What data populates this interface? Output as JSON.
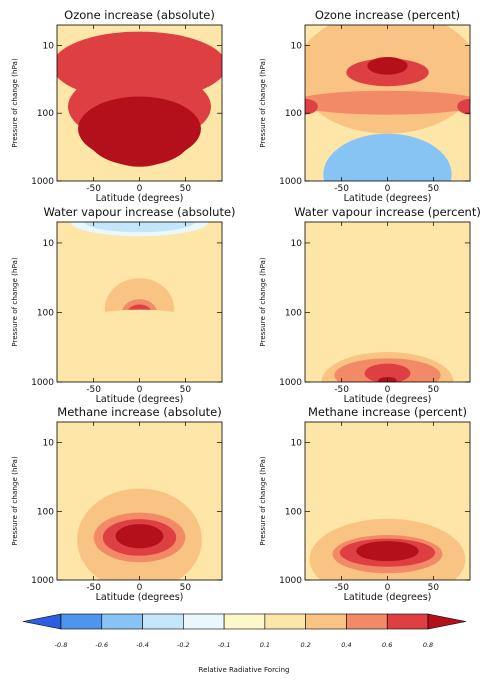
{
  "chart_data": {
    "type": "contour",
    "colorbar": {
      "label": "Relative Radiative Forcing",
      "ticks": [
        "-0.8",
        "-0.6",
        "-0.4",
        "-0.2",
        "-0.1",
        "0.1",
        "0.2",
        "0.4",
        "0.6",
        "0.8"
      ],
      "levels": [
        -1.0,
        -0.8,
        -0.6,
        -0.4,
        -0.2,
        -0.1,
        0.1,
        0.2,
        0.4,
        0.6,
        0.8,
        1.0
      ],
      "colors": [
        "#2b5fe0",
        "#4f95ee",
        "#87c4f4",
        "#c4e6fa",
        "#eaf7fc",
        "#fdf8c9",
        "#fde6a8",
        "#f9c383",
        "#f28a68",
        "#de3f42",
        "#b3101c"
      ]
    },
    "panels": [
      {
        "id": "ozone-abs",
        "title": "Ozone increase (absolute)",
        "xlabel": "Latitude (degrees)",
        "ylabel": "Pressure of change (hPa)",
        "xlim": [
          -90,
          90
        ],
        "ylim": [
          1000,
          5
        ],
        "ylog": true,
        "xticks": [
          -50,
          0,
          50
        ],
        "yticks": [
          10,
          100,
          1000
        ],
        "blobs": [
          {
            "cx": 0,
            "cy": 20,
            "rx": 95,
            "ry": 3.2,
            "v": 0.65
          },
          {
            "cx": 0,
            "cy": 80,
            "rx": 78,
            "ry": 3.4,
            "v": 0.75
          },
          {
            "cx": 0,
            "cy": 170,
            "rx": 67,
            "ry": 3.0,
            "v": 0.85
          },
          {
            "cx": 0,
            "cy": 230,
            "rx": 56,
            "ry": 2.6,
            "v": 0.95
          },
          {
            "cx": 0,
            "cy": 280,
            "rx": 42,
            "ry": 2.2,
            "v": 1.05
          },
          {
            "cx": 0,
            "cy": 330,
            "rx": 33,
            "ry": 1.8,
            "v": 1.15
          }
        ]
      },
      {
        "id": "ozone-pct",
        "title": "Ozone increase (percent)",
        "xlabel": "Latitude (degrees)",
        "ylabel": "Pressure of change (hPa)",
        "xlim": [
          -90,
          90
        ],
        "ylim": [
          1000,
          5
        ],
        "ylog": true,
        "xticks": [
          -50,
          0,
          50
        ],
        "yticks": [
          10,
          100,
          1000
        ],
        "blobs": [
          {
            "cx": 0,
            "cy": 25,
            "rx": 100,
            "ry": 8.0,
            "v": 0.25
          },
          {
            "cx": 0,
            "cy": 40,
            "rx": 105,
            "ry": 2.2,
            "v": 0.35
          },
          {
            "cx": 0,
            "cy": 70,
            "rx": 105,
            "ry": 1.5,
            "v": 0.45
          },
          {
            "cx": 0,
            "cy": 70,
            "rx": 110,
            "ry": 1.22,
            "v": 0.55
          },
          {
            "cx": 0,
            "cy": 25,
            "rx": 45,
            "ry": 1.6,
            "v": 0.75
          },
          {
            "cx": 0,
            "cy": 20,
            "rx": 22,
            "ry": 1.35,
            "v": 0.85
          },
          {
            "cx": -90,
            "cy": 80,
            "rx": 14,
            "ry": 1.3,
            "v": 0.7
          },
          {
            "cx": 90,
            "cy": 80,
            "rx": 14,
            "ry": 1.3,
            "v": 0.7
          },
          {
            "cx": 0,
            "cy": 800,
            "rx": 70,
            "ry": 4.0,
            "v": -0.42
          }
        ]
      },
      {
        "id": "water-abs",
        "title": "Water vapour increase (absolute)",
        "xlabel": "Latitude (degrees)",
        "ylabel": "Pressure of change (hPa)",
        "xlim": [
          -90,
          90
        ],
        "ylim": [
          1000,
          5
        ],
        "ylog": true,
        "xticks": [
          -50,
          0,
          50
        ],
        "yticks": [
          10,
          100,
          1000
        ],
        "blobs": [
          {
            "cx": 0,
            "cy": 5,
            "rx": 75,
            "ry": 1.6,
            "v": -0.15
          },
          {
            "cx": 0,
            "cy": 5,
            "rx": 60,
            "ry": 1.4,
            "v": -0.25
          },
          {
            "cx": 0,
            "cy": 4.5,
            "rx": 45,
            "ry": 1.3,
            "v": -0.35
          },
          {
            "cx": 0,
            "cy": 4,
            "rx": 35,
            "ry": 1.25,
            "v": -0.45
          },
          {
            "cx": 0,
            "cy": 4,
            "rx": 22,
            "ry": 1.2,
            "v": -0.55
          },
          {
            "cx": 0,
            "cy": 90,
            "rx": 38,
            "ry": 2.8,
            "v": 0.22
          },
          {
            "cx": 0,
            "cy": 95,
            "rx": 25,
            "ry": 1.85,
            "v": 0.35
          },
          {
            "cx": 0,
            "cy": 100,
            "rx": 19,
            "ry": 1.55,
            "v": 0.55
          },
          {
            "cx": 0,
            "cy": 100,
            "rx": 13,
            "ry": 1.3,
            "v": 0.75
          },
          {
            "cx": -88,
            "cy": 120,
            "rx": 10,
            "ry": 1.5,
            "v": 0.16
          },
          {
            "cx": 88,
            "cy": 120,
            "rx": 10,
            "ry": 1.5,
            "v": 0.16
          },
          {
            "cx": 0,
            "cy": 200,
            "rx": 85,
            "ry": 2.2,
            "v": 0.12
          }
        ]
      },
      {
        "id": "water-pct",
        "title": "Water vapour increase (percent)",
        "xlabel": "Latitude (degrees)",
        "ylabel": "Pressure of change (hPa)",
        "xlim": [
          -90,
          90
        ],
        "ylim": [
          1000,
          5
        ],
        "ylog": true,
        "xticks": [
          -50,
          0,
          50
        ],
        "yticks": [
          10,
          100,
          1000
        ],
        "blobs": [
          {
            "cx": 0,
            "cy": 1000,
            "rx": 85,
            "ry": 3.6,
            "v": 0.15
          },
          {
            "cx": 0,
            "cy": 1000,
            "rx": 72,
            "ry": 2.7,
            "v": 0.25
          },
          {
            "cx": 0,
            "cy": 800,
            "rx": 58,
            "ry": 1.75,
            "v": 0.45
          },
          {
            "cx": 0,
            "cy": 750,
            "rx": 40,
            "ry": 1.55,
            "v": 0.55
          },
          {
            "cx": 0,
            "cy": 750,
            "rx": 25,
            "ry": 1.38,
            "v": 0.7
          },
          {
            "cx": 0,
            "cy": 950,
            "rx": 10,
            "ry": 1.12,
            "v": 0.85
          }
        ]
      },
      {
        "id": "methane-abs",
        "title": "Methane increase (absolute)",
        "xlabel": "Latitude (degrees)",
        "ylabel": "Pressure of change (hPa)",
        "xlim": [
          -90,
          90
        ],
        "ylim": [
          1000,
          5
        ],
        "ylog": true,
        "xticks": [
          -50,
          0,
          50
        ],
        "yticks": [
          10,
          100,
          1000
        ],
        "blobs": [
          {
            "cx": 0,
            "cy": 260,
            "rx": 70,
            "ry": 11.5,
            "v": 0.15
          },
          {
            "cx": 0,
            "cy": 260,
            "rx": 68,
            "ry": 5.6,
            "v": 0.25
          },
          {
            "cx": 0,
            "cy": 250,
            "rx": 60,
            "ry": 3.3,
            "v": 0.35
          },
          {
            "cx": 0,
            "cy": 240,
            "rx": 50,
            "ry": 2.3,
            "v": 0.5
          },
          {
            "cx": 0,
            "cy": 240,
            "rx": 40,
            "ry": 1.85,
            "v": 0.65
          },
          {
            "cx": 0,
            "cy": 230,
            "rx": 26,
            "ry": 1.5,
            "v": 0.85
          }
        ]
      },
      {
        "id": "methane-pct",
        "title": "Methane increase (percent)",
        "xlabel": "Latitude (degrees)",
        "ylabel": "Pressure of change (hPa)",
        "xlim": [
          -90,
          90
        ],
        "ylim": [
          1000,
          5
        ],
        "ylog": true,
        "xticks": [
          -50,
          0,
          50
        ],
        "yticks": [
          10,
          100,
          1000
        ],
        "blobs": [
          {
            "cx": 0,
            "cy": 600,
            "rx": 110,
            "ry": 5.2,
            "v": 0.15
          },
          {
            "cx": 0,
            "cy": 500,
            "rx": 85,
            "ry": 3.9,
            "v": 0.25
          },
          {
            "cx": 0,
            "cy": 450,
            "rx": 70,
            "ry": 2.5,
            "v": 0.35
          },
          {
            "cx": 0,
            "cy": 420,
            "rx": 60,
            "ry": 1.9,
            "v": 0.5
          },
          {
            "cx": 0,
            "cy": 400,
            "rx": 52,
            "ry": 1.6,
            "v": 0.65
          },
          {
            "cx": 0,
            "cy": 380,
            "rx": 34,
            "ry": 1.4,
            "v": 0.85
          }
        ]
      }
    ]
  }
}
